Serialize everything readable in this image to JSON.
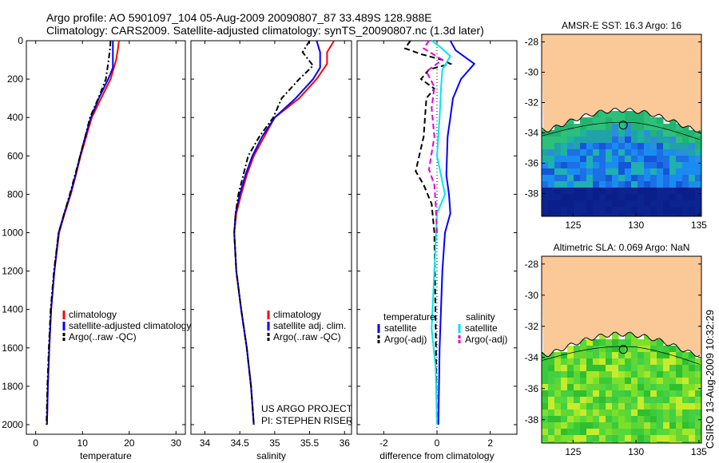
{
  "header": {
    "line1": "Argo profile: AO 5901097_104 05-Aug-2009 20090807_87 33.489S 128.988E",
    "line2": "Climatology: CARS2009. Satellite-adjusted climatology: synTS_20090807.nc (1.3d later)"
  },
  "side_label": "CSIRO 13-Aug-2009 10:32:29",
  "colors": {
    "climatology": "#ff0000",
    "satellite": "#0000ff",
    "argo": "#000000",
    "satellite_salinity": "#00e5ee",
    "argo_adj_salinity": "#e000e0",
    "land": "#fbc898"
  },
  "chart_data": [
    {
      "id": "temperature",
      "type": "line",
      "xlabel": "temperature",
      "ylabel": "",
      "xlim": [
        -2,
        32
      ],
      "ylim": [
        2050,
        0
      ],
      "y_reversed": true,
      "xticks": [
        0,
        10,
        20,
        30
      ],
      "yticks": [
        0,
        200,
        400,
        600,
        800,
        1000,
        1200,
        1400,
        1600,
        1800,
        2000
      ],
      "legend": [
        "climatology",
        "satellite-adjusted climatology",
        "Argo(..raw -QC)"
      ],
      "series": [
        {
          "name": "climatology",
          "style": "solid",
          "color": "#ff0000",
          "points": [
            [
              17.8,
              0
            ],
            [
              17.6,
              40
            ],
            [
              17.2,
              100
            ],
            [
              16.0,
              200
            ],
            [
              14.0,
              300
            ],
            [
              12.0,
              400
            ],
            [
              10.8,
              500
            ],
            [
              9.6,
              600
            ],
            [
              8.6,
              700
            ],
            [
              7.5,
              800
            ],
            [
              6.2,
              900
            ],
            [
              5.0,
              1000
            ],
            [
              4.0,
              1200
            ],
            [
              3.3,
              1400
            ],
            [
              2.9,
              1600
            ],
            [
              2.6,
              1800
            ],
            [
              2.4,
              2000
            ]
          ]
        },
        {
          "name": "satellite-adjusted climatology",
          "style": "solid",
          "color": "#0000ff",
          "points": [
            [
              16.5,
              0
            ],
            [
              16.5,
              40
            ],
            [
              16.5,
              140
            ],
            [
              15.5,
              200
            ],
            [
              13.5,
              300
            ],
            [
              11.8,
              400
            ],
            [
              10.6,
              500
            ],
            [
              9.5,
              600
            ],
            [
              8.5,
              700
            ],
            [
              7.4,
              800
            ],
            [
              6.1,
              900
            ],
            [
              4.9,
              1000
            ],
            [
              4.0,
              1200
            ],
            [
              3.3,
              1400
            ],
            [
              2.9,
              1600
            ],
            [
              2.6,
              1800
            ],
            [
              2.4,
              2000
            ]
          ]
        },
        {
          "name": "Argo(..raw -QC)",
          "style": "dash-dot",
          "color": "#000000",
          "points": [
            [
              16.0,
              0
            ],
            [
              15.9,
              40
            ],
            [
              15.6,
              100
            ],
            [
              15.0,
              200
            ],
            [
              13.4,
              300
            ],
            [
              11.6,
              400
            ],
            [
              10.6,
              500
            ],
            [
              9.5,
              600
            ],
            [
              8.4,
              700
            ],
            [
              7.3,
              800
            ],
            [
              6.1,
              900
            ],
            [
              4.9,
              1000
            ],
            [
              3.9,
              1200
            ],
            [
              3.2,
              1400
            ],
            [
              2.8,
              1600
            ],
            [
              2.5,
              1800
            ],
            [
              2.3,
              2000
            ]
          ]
        }
      ]
    },
    {
      "id": "salinity",
      "type": "line",
      "xlabel": "salinity",
      "ylabel": "",
      "xlim": [
        33.8,
        36.1
      ],
      "ylim": [
        2050,
        0
      ],
      "y_reversed": true,
      "xticks": [
        34,
        34.5,
        35,
        35.5,
        36
      ],
      "legend": [
        "climatology",
        "satellite adj. clim.",
        "Argo(..raw -QC)"
      ],
      "annotation": [
        "US ARGO PROJECT",
        "PI: STEPHEN RISER"
      ],
      "series": [
        {
          "name": "climatology",
          "style": "solid",
          "color": "#ff0000",
          "points": [
            [
              35.85,
              0
            ],
            [
              35.75,
              60
            ],
            [
              35.75,
              120
            ],
            [
              35.6,
              200
            ],
            [
              35.35,
              300
            ],
            [
              35.0,
              400
            ],
            [
              34.85,
              500
            ],
            [
              34.7,
              600
            ],
            [
              34.6,
              700
            ],
            [
              34.52,
              800
            ],
            [
              34.45,
              900
            ],
            [
              34.42,
              1000
            ],
            [
              34.45,
              1200
            ],
            [
              34.52,
              1400
            ],
            [
              34.6,
              1600
            ],
            [
              34.66,
              1800
            ],
            [
              34.7,
              2000
            ]
          ]
        },
        {
          "name": "satellite adj. clim.",
          "style": "solid",
          "color": "#0000ff",
          "points": [
            [
              35.6,
              0
            ],
            [
              35.65,
              60
            ],
            [
              35.65,
              140
            ],
            [
              35.55,
              200
            ],
            [
              35.3,
              300
            ],
            [
              35.0,
              400
            ],
            [
              34.82,
              500
            ],
            [
              34.68,
              600
            ],
            [
              34.58,
              700
            ],
            [
              34.5,
              800
            ],
            [
              34.44,
              900
            ],
            [
              34.42,
              1000
            ],
            [
              34.45,
              1200
            ],
            [
              34.52,
              1400
            ],
            [
              34.6,
              1600
            ],
            [
              34.66,
              1800
            ],
            [
              34.7,
              2000
            ]
          ]
        },
        {
          "name": "Argo(..raw -QC)",
          "style": "dash-dot",
          "color": "#000000",
          "points": [
            [
              35.5,
              0
            ],
            [
              35.4,
              60
            ],
            [
              35.55,
              130
            ],
            [
              35.35,
              200
            ],
            [
              35.1,
              300
            ],
            [
              34.98,
              400
            ],
            [
              34.78,
              500
            ],
            [
              34.62,
              600
            ],
            [
              34.55,
              700
            ],
            [
              34.48,
              800
            ],
            [
              34.44,
              900
            ],
            [
              34.42,
              1000
            ],
            [
              34.45,
              1200
            ],
            [
              34.52,
              1400
            ],
            [
              34.6,
              1600
            ],
            [
              34.66,
              1800
            ],
            [
              34.7,
              2000
            ]
          ]
        }
      ]
    },
    {
      "id": "difference",
      "type": "line",
      "xlabel": "difference from climatology",
      "ylabel": "",
      "xlim": [
        -3,
        3
      ],
      "ylim": [
        2050,
        0
      ],
      "y_reversed": true,
      "xticks": [
        -2,
        0,
        2
      ],
      "legend_left_title": "temperature",
      "legend_right_title": "salinity",
      "legend_left": [
        "satellite",
        "Argo(-adj)"
      ],
      "legend_right": [
        "satellite",
        "Argo(-adj)"
      ],
      "series": [
        {
          "name": "temperature satellite",
          "style": "solid",
          "color": "#0000ff",
          "points": [
            [
              0.5,
              0
            ],
            [
              0.7,
              50
            ],
            [
              1.4,
              120
            ],
            [
              0.9,
              200
            ],
            [
              0.6,
              300
            ],
            [
              0.5,
              400
            ],
            [
              0.4,
              500
            ],
            [
              0.35,
              700
            ],
            [
              0.45,
              800
            ],
            [
              0.5,
              900
            ],
            [
              0.3,
              1000
            ],
            [
              0.2,
              1200
            ],
            [
              0.15,
              1400
            ],
            [
              0.1,
              1600
            ],
            [
              0.05,
              2000
            ]
          ]
        },
        {
          "name": "temperature Argo(-adj)",
          "style": "dashed",
          "color": "#000000",
          "points": [
            [
              -1.0,
              0
            ],
            [
              -1.2,
              40
            ],
            [
              -0.6,
              70
            ],
            [
              0.2,
              100
            ],
            [
              0.5,
              120
            ],
            [
              -0.3,
              150
            ],
            [
              -0.6,
              200
            ],
            [
              -0.1,
              250
            ],
            [
              -0.4,
              300
            ],
            [
              -0.5,
              500
            ],
            [
              -0.8,
              680
            ],
            [
              -0.5,
              750
            ],
            [
              -0.2,
              850
            ],
            [
              -0.1,
              1000
            ],
            [
              0.0,
              2000
            ]
          ]
        },
        {
          "name": "salinity satellite",
          "style": "solid",
          "color": "#00e5ee",
          "points": [
            [
              -0.2,
              0
            ],
            [
              0.1,
              30
            ],
            [
              0.5,
              80
            ],
            [
              0.2,
              150
            ],
            [
              0.15,
              250
            ],
            [
              0.1,
              400
            ],
            [
              0.0,
              600
            ],
            [
              0.3,
              800
            ],
            [
              0.0,
              900
            ],
            [
              -0.1,
              1200
            ],
            [
              -0.2,
              1500
            ],
            [
              -0.05,
              1700
            ],
            [
              0.0,
              2000
            ]
          ]
        },
        {
          "name": "salinity Argo(-adj)",
          "style": "dashed",
          "color": "#e000e0",
          "points": [
            [
              -0.3,
              0
            ],
            [
              -0.5,
              40
            ],
            [
              0.2,
              100
            ],
            [
              -0.4,
              160
            ],
            [
              -0.1,
              240
            ],
            [
              -0.2,
              350
            ],
            [
              -0.1,
              500
            ],
            [
              -0.3,
              670
            ],
            [
              -0.1,
              750
            ],
            [
              -0.05,
              850
            ],
            [
              0.0,
              1000
            ]
          ]
        }
      ]
    },
    {
      "id": "map_sst",
      "type": "heatmap",
      "title": "AMSR-E SST: 16.3 Argo: 16",
      "xlim": [
        122.5,
        135.2
      ],
      "ylim": [
        -39.5,
        -27.5
      ],
      "xticks": [
        125,
        130,
        135
      ],
      "yticks": [
        -28,
        -30,
        -32,
        -34,
        -36,
        -38
      ],
      "float_position": {
        "lon": 128.988,
        "lat": -33.489
      }
    },
    {
      "id": "map_sla",
      "type": "heatmap",
      "title": "Altimetric SLA: 0.069 Argo: NaN",
      "xlim": [
        122.5,
        135.2
      ],
      "ylim": [
        -39.5,
        -27.5
      ],
      "xticks": [
        125,
        130,
        135
      ],
      "yticks": [
        -28,
        -30,
        -32,
        -34,
        -36,
        -38
      ],
      "float_position": {
        "lon": 128.988,
        "lat": -33.489
      }
    }
  ]
}
